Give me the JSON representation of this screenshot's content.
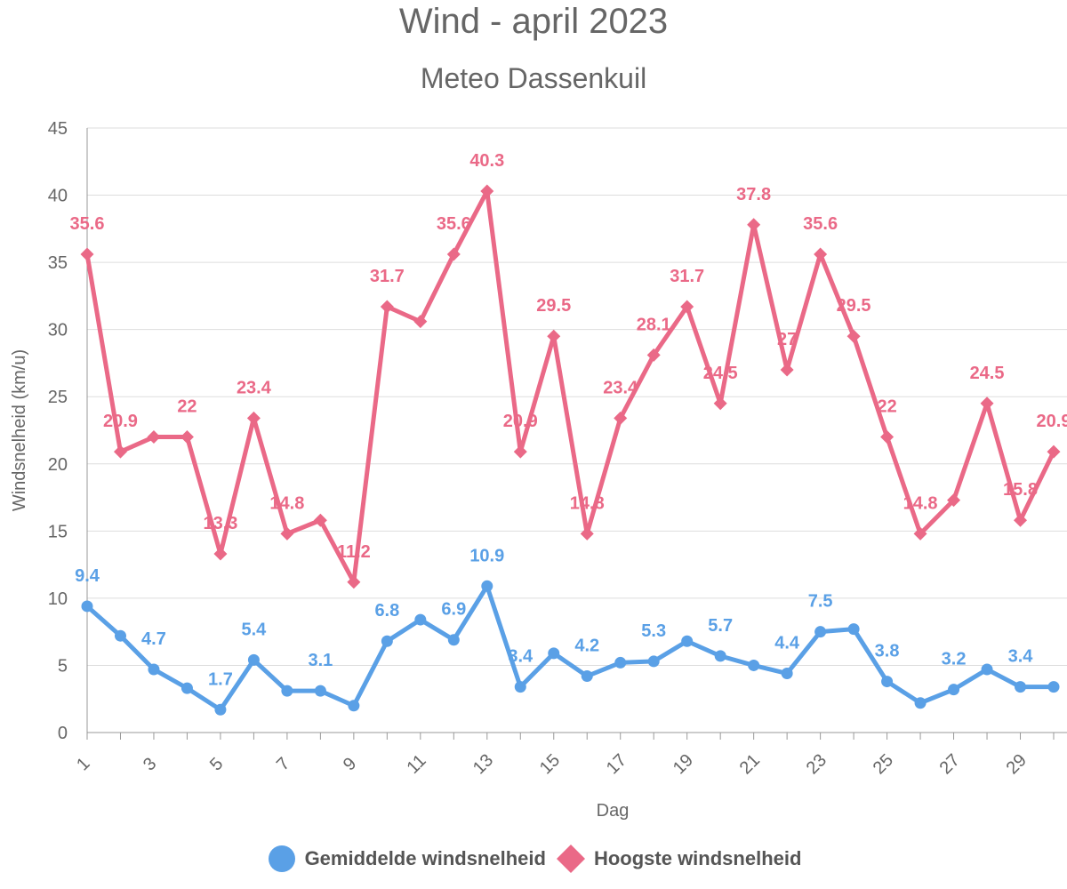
{
  "title": "Wind - april 2023",
  "subtitle": "Meteo Dassenkuil",
  "colors": {
    "avg": "#5aa0e6",
    "max": "#ea6987",
    "grid": "#dddddd",
    "axis": "#999999"
  },
  "legend": {
    "avg_label": "Gemiddelde windsnelheid",
    "max_label": "Hoogste windsnelheid"
  },
  "chart_data": {
    "type": "line",
    "title": "Wind - april 2023",
    "subtitle": "Meteo Dassenkuil",
    "xlabel": "Dag",
    "ylabel": "Windsnelheid (km/u)",
    "ylim": [
      0,
      45
    ],
    "yticks": [
      0,
      5,
      10,
      15,
      20,
      25,
      30,
      35,
      40,
      45
    ],
    "x": [
      1,
      2,
      3,
      4,
      5,
      6,
      7,
      8,
      9,
      10,
      11,
      12,
      13,
      14,
      15,
      16,
      17,
      18,
      19,
      20,
      21,
      22,
      23,
      24,
      25,
      26,
      27,
      28,
      29,
      30
    ],
    "xtick_labels": [
      "1",
      "3",
      "5",
      "7",
      "9",
      "11",
      "13",
      "15",
      "17",
      "19",
      "21",
      "23",
      "25",
      "27",
      "29"
    ],
    "grid": true,
    "legend_position": "bottom",
    "series": [
      {
        "name": "Gemiddelde windsnelheid",
        "marker": "circle",
        "values": [
          9.4,
          7.2,
          4.7,
          3.3,
          1.7,
          5.4,
          3.1,
          3.1,
          2.0,
          6.8,
          8.4,
          6.9,
          10.9,
          3.4,
          5.9,
          4.2,
          5.2,
          5.3,
          6.8,
          5.7,
          5.0,
          4.4,
          7.5,
          7.7,
          3.8,
          2.2,
          3.2,
          4.7,
          3.4,
          3.4
        ],
        "labels": [
          "9.4",
          "",
          "4.7",
          "",
          "1.7",
          "5.4",
          "",
          "3.1",
          "",
          "6.8",
          "",
          "6.9",
          "10.9",
          "3.4",
          "",
          "4.2",
          "",
          "5.3",
          "",
          "5.7",
          "",
          "4.4",
          "7.5",
          "",
          "3.8",
          "",
          "3.2",
          "",
          "3.4",
          ""
        ]
      },
      {
        "name": "Hoogste windsnelheid",
        "marker": "diamond",
        "values": [
          35.6,
          20.9,
          22.0,
          22.0,
          13.3,
          23.4,
          14.8,
          15.8,
          11.2,
          31.7,
          30.6,
          35.6,
          40.3,
          20.9,
          29.5,
          14.8,
          23.4,
          28.1,
          31.7,
          24.5,
          37.8,
          27.0,
          35.6,
          29.5,
          22.0,
          14.8,
          17.3,
          24.5,
          15.8,
          20.9
        ],
        "labels": [
          "35.6",
          "20.9",
          "",
          "22",
          "13.3",
          "23.4",
          "14.8",
          "",
          "11.2",
          "31.7",
          "",
          "35.6",
          "40.3",
          "20.9",
          "29.5",
          "14.8",
          "23.4",
          "28.1",
          "31.7",
          "24.5",
          "37.8",
          "27",
          "35.6",
          "29.5",
          "22",
          "14.8",
          "",
          "24.5",
          "15.8",
          "20.9"
        ]
      }
    ]
  }
}
